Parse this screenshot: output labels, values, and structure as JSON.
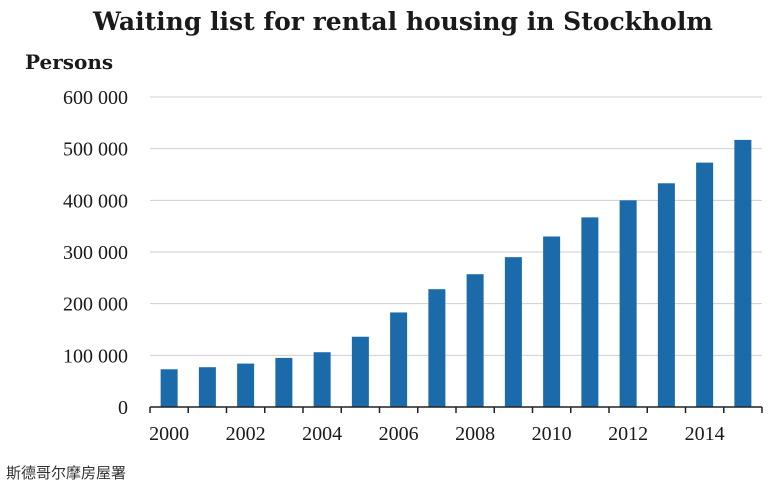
{
  "caption": "斯德哥尔摩房屋署",
  "colors": {
    "bar": "#1b6aa9",
    "grid": "#cfcfcf",
    "axis": "#222222"
  },
  "chart_data": {
    "type": "bar",
    "title": "Waiting list for rental housing in Stockholm",
    "ylabel": "Persons",
    "xlabel": "",
    "ylim": [
      0,
      600000
    ],
    "yticks": [
      0,
      100000,
      200000,
      300000,
      400000,
      500000,
      600000
    ],
    "ytick_labels": [
      "0",
      "100 000",
      "200 000",
      "300 000",
      "400 000",
      "500 000",
      "600 000"
    ],
    "categories": [
      "2000",
      "2001",
      "2002",
      "2003",
      "2004",
      "2005",
      "2006",
      "2007",
      "2008",
      "2009",
      "2010",
      "2011",
      "2012",
      "2013",
      "2014",
      "2015"
    ],
    "xtick_labels": [
      "2000",
      "",
      "2002",
      "",
      "2004",
      "",
      "2006",
      "",
      "2008",
      "",
      "2010",
      "",
      "2012",
      "",
      "2014",
      ""
    ],
    "values": [
      73000,
      77000,
      84000,
      95000,
      106000,
      136000,
      183000,
      228000,
      257000,
      290000,
      330000,
      367000,
      400000,
      433000,
      473000,
      517000
    ],
    "grid": true,
    "legend": "none"
  }
}
